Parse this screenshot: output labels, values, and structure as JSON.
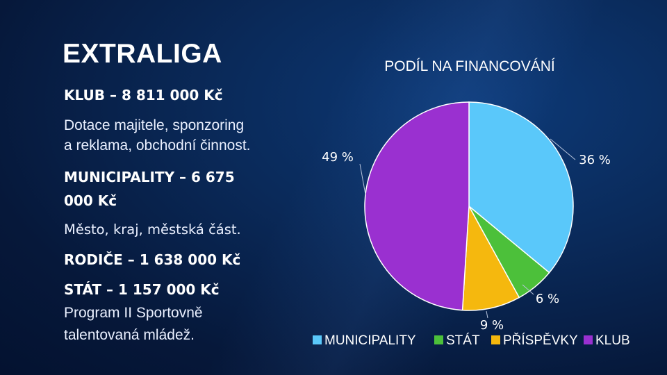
{
  "slide": {
    "title": "EXTRALIGA",
    "left_text": {
      "klub_heading": "KLUB – 8 811 000 Kč",
      "klub_desc_1": "Dotace majitele, sponzoring",
      "klub_desc_2": "a reklama, obchodní činnost.",
      "municipality_heading_1": "MUNICIPALITY – 6 675",
      "municipality_heading_2": "000 Kč",
      "municipality_desc": "Město, kraj, městská část.",
      "rodice_heading": "RODIČE – 1 638 000 Kč",
      "stat_heading": "STÁT – 1 157 000 Kč",
      "stat_desc_1": "Program II Sportovně",
      "stat_desc_2": "talentovaná mládež."
    }
  },
  "chart_data": {
    "type": "pie",
    "title": "PODÍL NA FINANCOVÁNÍ",
    "legend_position": "bottom",
    "slices": [
      {
        "name": "MUNICIPALITY",
        "value": 36,
        "label": "36 %",
        "color": "#5ac8fa"
      },
      {
        "name": "STÁT",
        "value": 6,
        "label": "6 %",
        "color": "#4cc03a"
      },
      {
        "name": "PŘÍSPĚVKY",
        "value": 9,
        "label": "9 %",
        "color": "#f5b80e"
      },
      {
        "name": "KLUB",
        "value": 49,
        "label": "49 %",
        "color": "#9a30d0"
      }
    ]
  }
}
